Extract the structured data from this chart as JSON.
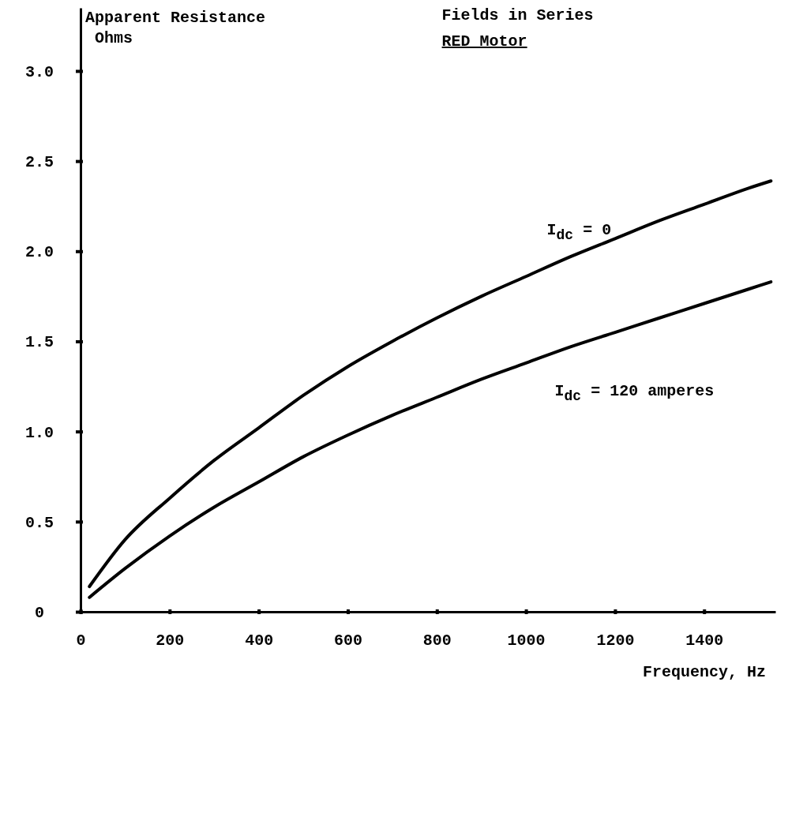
{
  "chart_data": {
    "type": "line",
    "title": "Fields in Series",
    "subtitle": "RED Motor",
    "xlabel": "Frequency, Hz",
    "ylabel": "Apparent Resistance\nOhms",
    "xlim": [
      0,
      1560
    ],
    "ylim": [
      0,
      3.35
    ],
    "xticks": [
      0,
      200,
      400,
      600,
      800,
      1000,
      1200,
      1400
    ],
    "yticks": [
      0,
      0.5,
      {
        "value": 1,
        "label": "1.0"
      },
      1.5,
      {
        "value": 2,
        "label": "2.0"
      },
      2.5,
      {
        "value": 3,
        "label": "3.0"
      }
    ],
    "x": [
      20,
      100,
      200,
      300,
      400,
      500,
      600,
      700,
      800,
      900,
      1000,
      1100,
      1200,
      1300,
      1400,
      1500,
      1550
    ],
    "series": [
      {
        "name": "I$_{dc}$ = 0",
        "color": "#000000",
        "values": [
          0.14,
          0.4,
          0.63,
          0.84,
          1.02,
          1.2,
          1.36,
          1.5,
          1.63,
          1.75,
          1.86,
          1.97,
          2.07,
          2.17,
          2.26,
          2.35,
          2.39
        ]
      },
      {
        "name": "I$_{dc}$ = 120 amperes",
        "color": "#000000",
        "values": [
          0.08,
          0.24,
          0.42,
          0.58,
          0.72,
          0.86,
          0.98,
          1.09,
          1.19,
          1.29,
          1.38,
          1.47,
          1.55,
          1.63,
          1.71,
          1.79,
          1.83
        ]
      }
    ],
    "grid": false,
    "legend": false,
    "marker": "none",
    "line_style": "solid"
  }
}
